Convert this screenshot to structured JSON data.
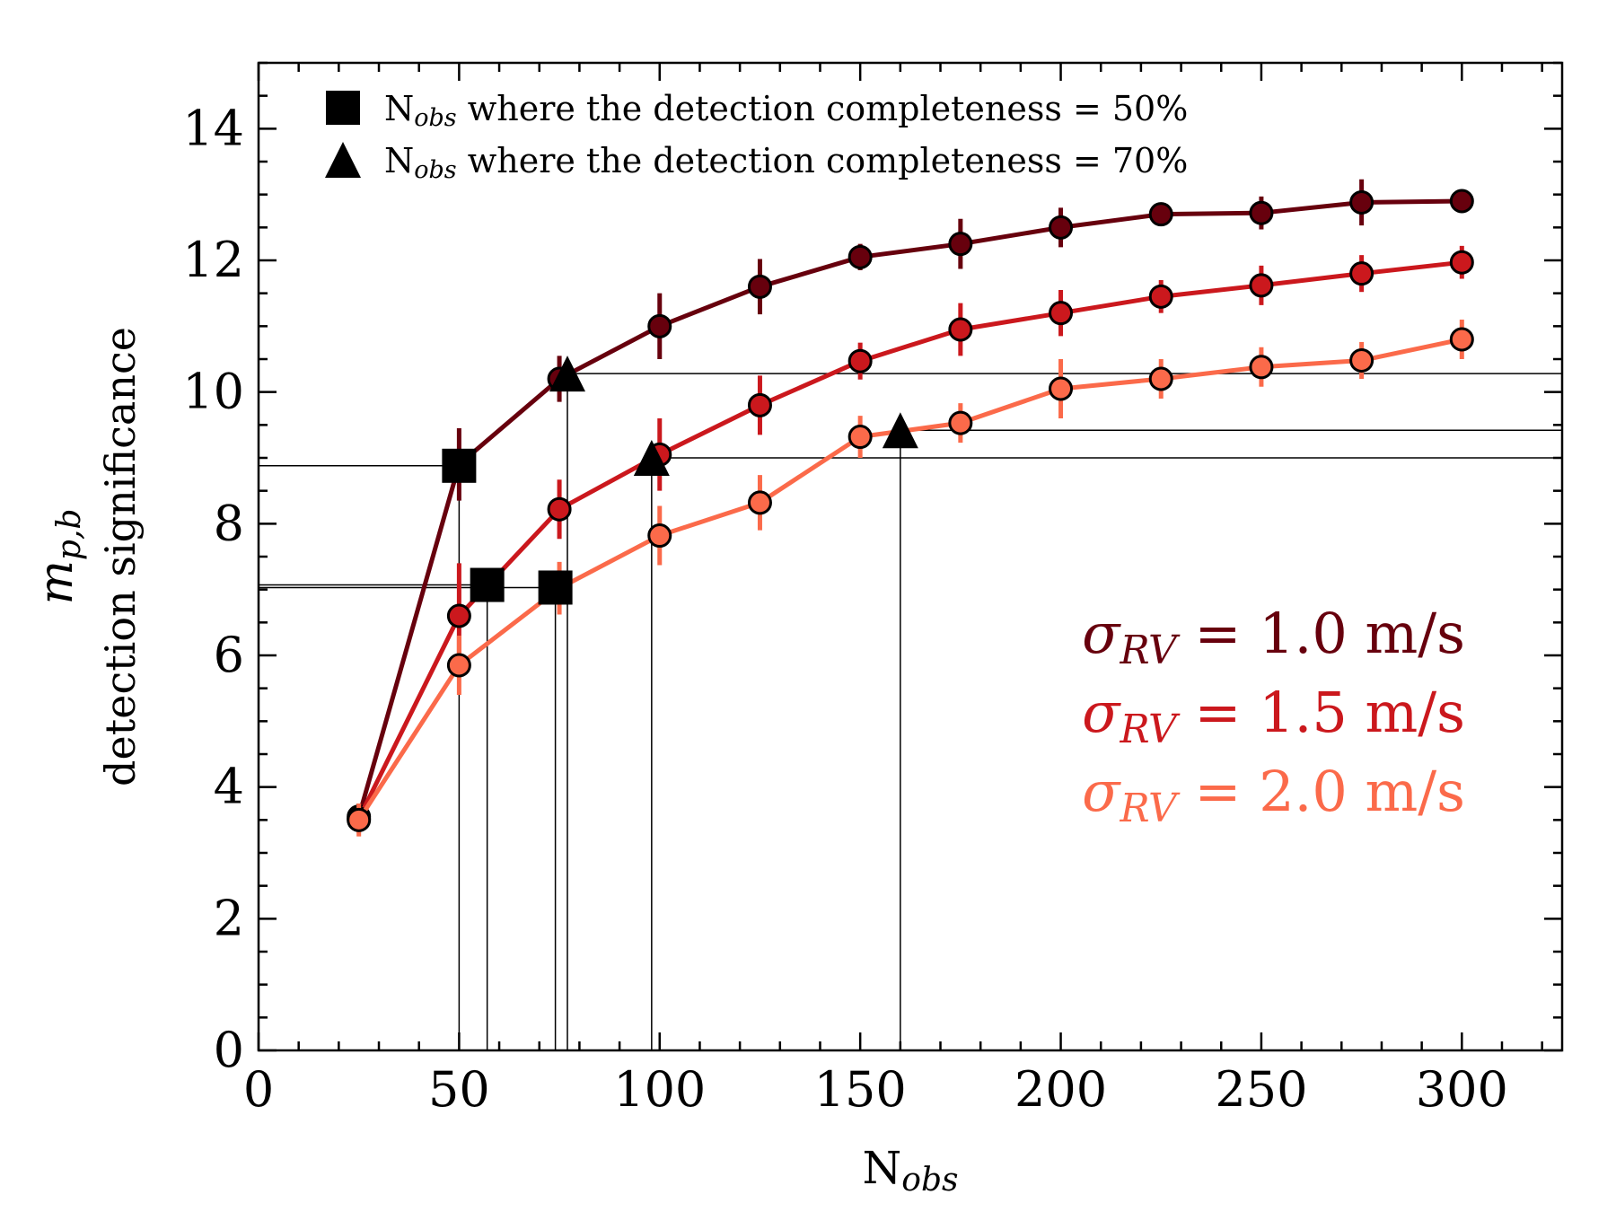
{
  "chart_data": {
    "type": "line",
    "xlabel": "N",
    "xlabel_sub": "obs",
    "ylabel_symbol": "m",
    "ylabel_sub": "p,b",
    "ylabel_text": "detection significance",
    "xlim": [
      0,
      325
    ],
    "ylim": [
      0,
      15
    ],
    "xticks": [
      0,
      50,
      100,
      150,
      200,
      250,
      300
    ],
    "yticks": [
      0,
      2,
      4,
      6,
      8,
      10,
      12,
      14
    ],
    "x_minor_step": 10,
    "y_minor_step": 0.5,
    "x": [
      25,
      50,
      75,
      100,
      125,
      150,
      175,
      200,
      225,
      250,
      275,
      300
    ],
    "series": [
      {
        "name": "σRV = 1.0 m/s",
        "sigma_value": "= 1.0 m/s",
        "color": "#67000d",
        "values": [
          3.55,
          8.9,
          10.2,
          11.0,
          11.6,
          12.05,
          12.25,
          12.5,
          12.7,
          12.72,
          12.88,
          12.9
        ],
        "errors": [
          0.2,
          0.55,
          0.35,
          0.5,
          0.42,
          0.2,
          0.38,
          0.3,
          0.12,
          0.25,
          0.35,
          0.1
        ]
      },
      {
        "name": "σRV = 1.5 m/s",
        "sigma_value": "= 1.5 m/s",
        "color": "#cb181d",
        "values": [
          3.52,
          6.6,
          8.22,
          9.05,
          9.8,
          10.47,
          10.95,
          11.2,
          11.45,
          11.62,
          11.8,
          11.97
        ],
        "errors": [
          0.2,
          0.8,
          0.45,
          0.55,
          0.45,
          0.28,
          0.4,
          0.35,
          0.25,
          0.3,
          0.28,
          0.25
        ]
      },
      {
        "name": "σRV = 2.0 m/s",
        "sigma_value": "= 2.0 m/s",
        "color": "#fb6a4a",
        "values": [
          3.5,
          5.85,
          7.02,
          7.82,
          8.32,
          9.32,
          9.53,
          10.05,
          10.2,
          10.38,
          10.48,
          10.8
        ],
        "errors": [
          0.25,
          0.45,
          0.4,
          0.45,
          0.42,
          0.32,
          0.3,
          0.45,
          0.3,
          0.3,
          0.28,
          0.3
        ]
      }
    ],
    "markers_50pct": [
      {
        "x": 50,
        "y": 8.88
      },
      {
        "x": 57,
        "y": 7.07
      },
      {
        "x": 74,
        "y": 7.03
      }
    ],
    "markers_70pct": [
      {
        "x": 77,
        "y": 10.28
      },
      {
        "x": 98,
        "y": 9.0
      },
      {
        "x": 160,
        "y": 9.42
      }
    ],
    "legend": [
      {
        "marker": "square",
        "label_n": "N",
        "label_sub": "obs",
        "label_rest": " where the detection completeness = 50%"
      },
      {
        "marker": "triangle",
        "label_n": "N",
        "label_sub": "obs",
        "label_rest": " where the detection completeness = 70%"
      }
    ],
    "sigma_label_symbol": "σ",
    "sigma_label_sub": "RV"
  }
}
